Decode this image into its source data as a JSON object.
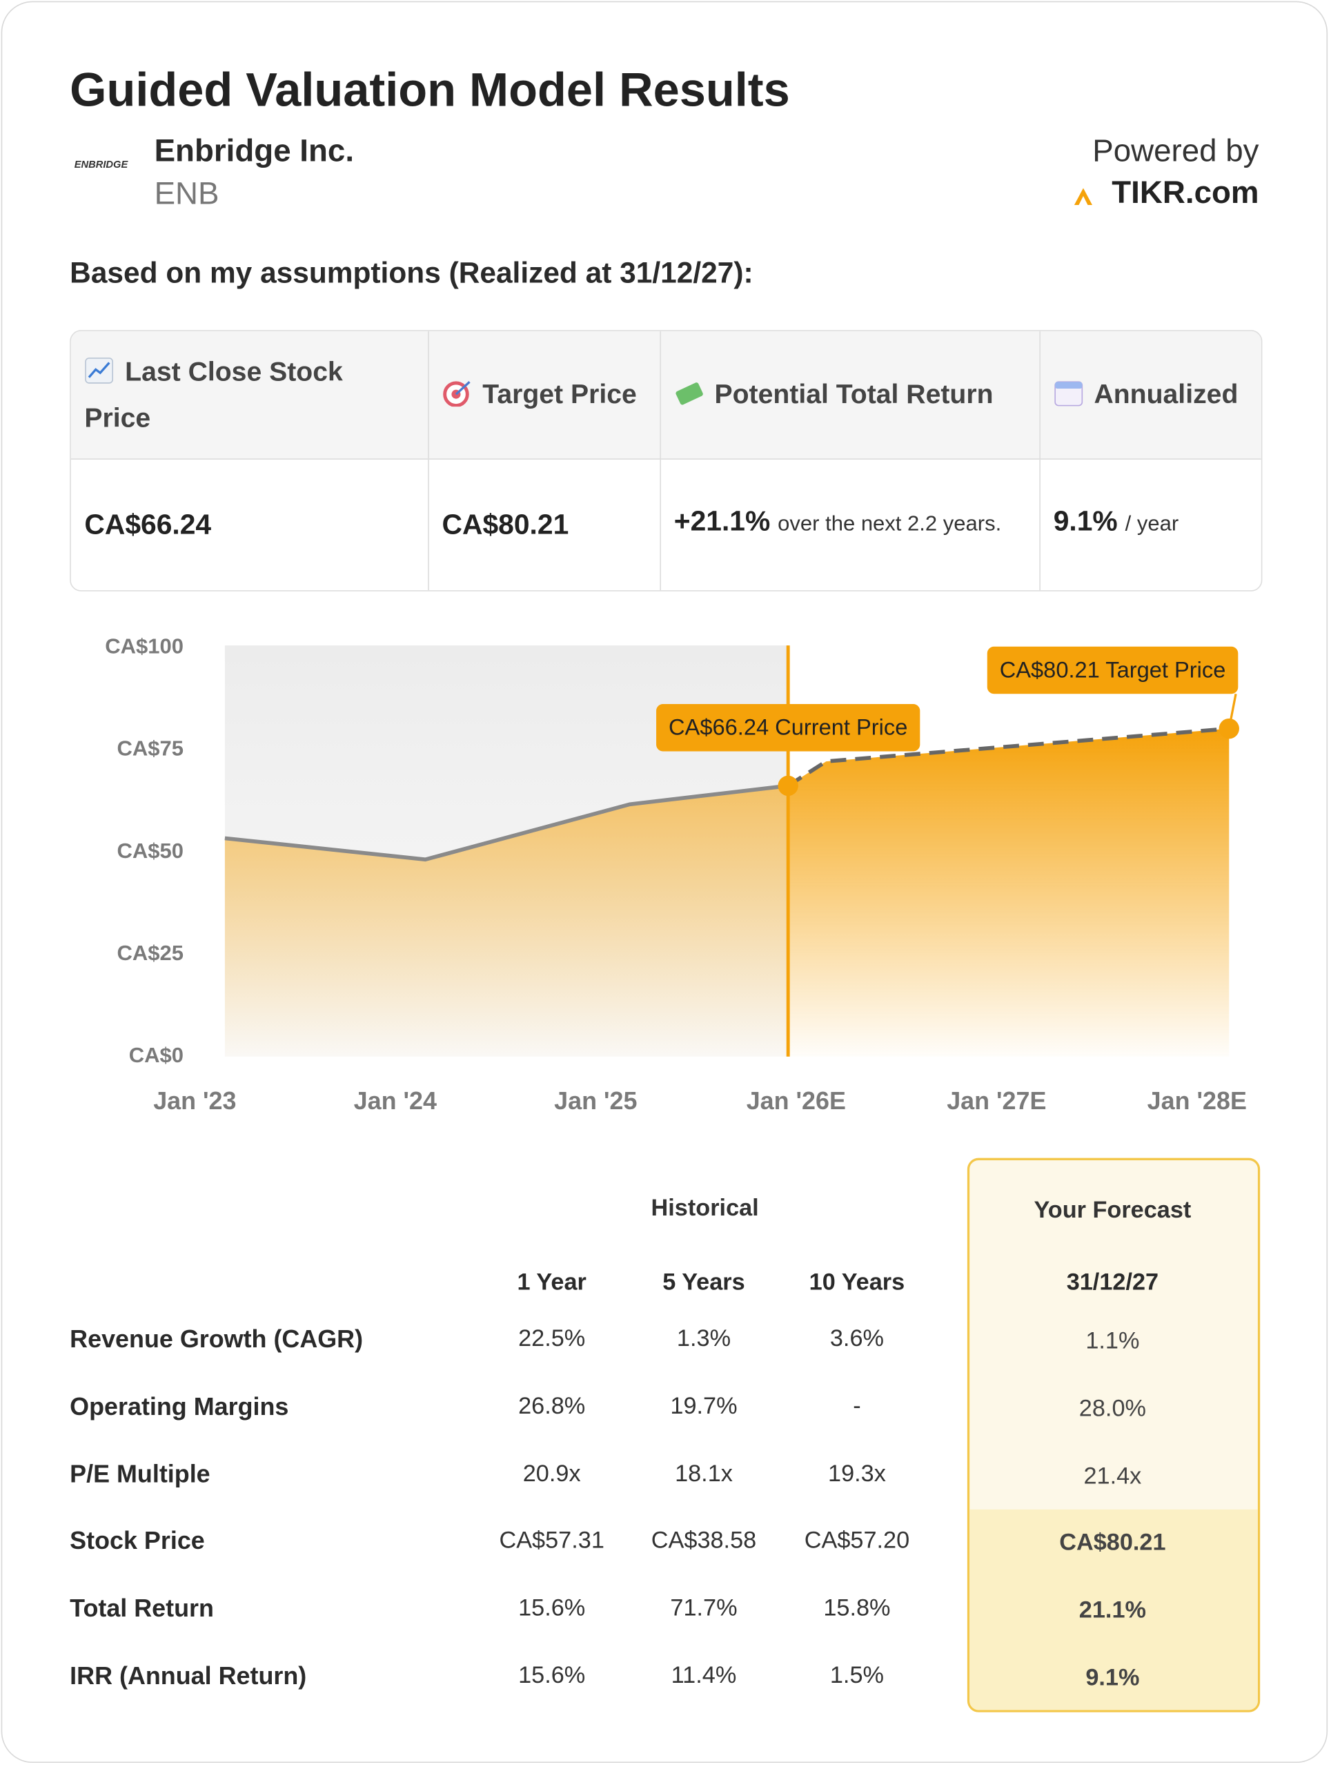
{
  "header": {
    "title": "Guided Valuation Model Results",
    "logo_text": "ENBRIDGE",
    "company": "Enbridge Inc.",
    "ticker": "ENB",
    "powered_by": "Powered by",
    "brand": "TIKR.com"
  },
  "assumptions_heading": "Based on my assumptions (Realized at 31/12/27):",
  "summary": {
    "headers": [
      "Last Close Stock Price",
      "Target Price",
      "Potential Total Return",
      "Annualized"
    ],
    "last_close": "CA$66.24",
    "target": "CA$80.21",
    "total_return": "+21.1%",
    "total_return_note": "over the next 2.2 years.",
    "annualized": "9.1%",
    "annualized_note": "/ year"
  },
  "chart_data": {
    "type": "area",
    "color": "#f5a20a",
    "line_colors": [
      "#8a8a8a",
      "#666666"
    ],
    "series": [
      {
        "x": [
          2023.15,
          2024.15,
          2025.17,
          2025.96
        ],
        "values": [
          53.4,
          48.2,
          61.7,
          66.24
        ],
        "value_labels": [
          null,
          null,
          null,
          "CA$66.24 Current Price"
        ]
      },
      {
        "x": [
          2025.96,
          2026.15,
          2028.16
        ],
        "values": [
          66.24,
          72.2,
          80.21
        ],
        "value_labels": [
          null,
          null,
          "CA$80.21 Target Price"
        ],
        "dashed": true
      }
    ],
    "xlim": [
      2023,
      2028.2
    ],
    "xticks": [
      {
        "value": 2023,
        "label": "Jan '23"
      },
      {
        "value": 2024,
        "label": "Jan '24"
      },
      {
        "value": 2025,
        "label": "Jan '25"
      },
      {
        "value": 2026,
        "label": "Jan '26E"
      },
      {
        "value": 2027,
        "label": "Jan '27E"
      },
      {
        "value": 2028,
        "label": "Jan '28E"
      }
    ],
    "ylim": [
      0,
      100
    ],
    "yticks": [
      {
        "value": 0,
        "label": "CA$0"
      },
      {
        "value": 25,
        "label": "CA$25"
      },
      {
        "value": 50,
        "label": "CA$50"
      },
      {
        "value": 75,
        "label": "CA$75"
      },
      {
        "value": 100,
        "label": "CA$100"
      }
    ]
  },
  "metrics": {
    "group_historical": "Historical",
    "group_forecast": "Your Forecast",
    "columns": [
      "1 Year",
      "5 Years",
      "10 Years",
      "31/12/27"
    ],
    "rows": [
      {
        "label": "Revenue Growth (CAGR)",
        "values": [
          "22.5%",
          "1.3%",
          "3.6%",
          "1.1%"
        ]
      },
      {
        "label": "Operating Margins",
        "values": [
          "26.8%",
          "19.7%",
          "-",
          "28.0%"
        ]
      },
      {
        "label": "P/E Multiple",
        "values": [
          "20.9x",
          "18.1x",
          "19.3x",
          "21.4x"
        ]
      },
      {
        "label": "Stock Price",
        "values": [
          "CA$57.31",
          "CA$38.58",
          "CA$57.20",
          "CA$80.21"
        ]
      },
      {
        "label": "Total Return",
        "values": [
          "15.6%",
          "71.7%",
          "15.8%",
          "21.1%"
        ]
      },
      {
        "label": "IRR (Annual Return)",
        "values": [
          "15.6%",
          "11.4%",
          "1.5%",
          "9.1%"
        ]
      }
    ]
  }
}
